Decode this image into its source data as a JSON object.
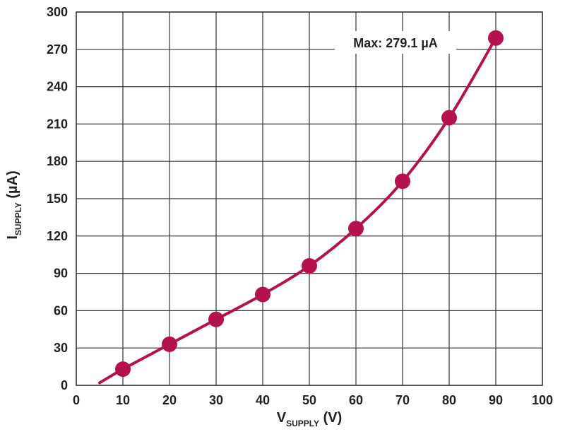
{
  "chart_data": {
    "type": "line",
    "x": [
      10,
      20,
      30,
      40,
      50,
      60,
      70,
      80,
      90
    ],
    "series": [
      {
        "values": [
          13,
          33,
          53,
          73,
          96,
          126,
          164,
          215,
          279.1
        ]
      }
    ],
    "line_start": {
      "x": 5,
      "y": 2
    },
    "xlim": [
      0,
      100
    ],
    "ylim": [
      0,
      300
    ],
    "xticks": [
      "0",
      "10",
      "20",
      "30",
      "40",
      "50",
      "60",
      "70",
      "80",
      "90",
      "100"
    ],
    "yticks": [
      "0",
      "30",
      "60",
      "90",
      "120",
      "150",
      "180",
      "210",
      "240",
      "270",
      "300"
    ],
    "xlabel": {
      "main": "V",
      "sub": "SUPPLY",
      "unit": " (V)"
    },
    "ylabel": {
      "main": "I",
      "sub": "SUPPLY",
      "unit": " (µA)"
    },
    "annotation": "Max: 279.1 µA",
    "grid": true,
    "series_color": "#b3124e",
    "grid_color": "#333333"
  }
}
